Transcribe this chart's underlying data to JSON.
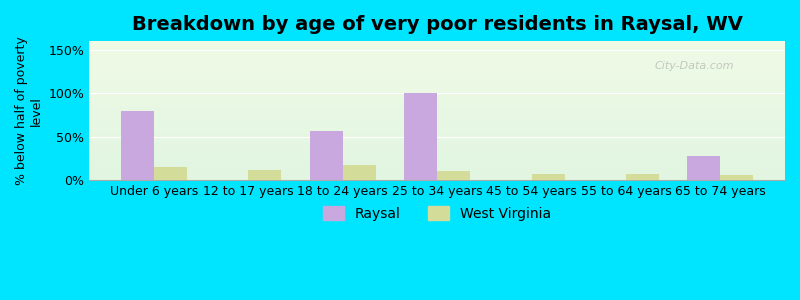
{
  "title": "Breakdown by age of very poor residents in Raysal, WV",
  "ylabel": "% below half of poverty\nlevel",
  "categories": [
    "Under 6 years",
    "12 to 17 years",
    "18 to 24 years",
    "25 to 34 years",
    "45 to 54 years",
    "55 to 64 years",
    "65 to 74 years"
  ],
  "raysal_values": [
    80,
    0,
    57,
    100,
    0,
    0,
    28
  ],
  "wv_values": [
    15,
    12,
    17,
    10,
    7,
    7,
    6
  ],
  "raysal_color": "#c9a8e0",
  "wv_color": "#d4dc9a",
  "bar_width": 0.35,
  "ylim": [
    0,
    160
  ],
  "yticks": [
    0,
    50,
    100,
    150
  ],
  "ytick_labels": [
    "0%",
    "50%",
    "100%",
    "150%"
  ],
  "background_top": "#e8f5e9",
  "background_bottom": "#f0f7e8",
  "outer_bg": "#00e5ff",
  "title_fontsize": 14,
  "axis_fontsize": 9,
  "legend_labels": [
    "Raysal",
    "West Virginia"
  ],
  "watermark": "City-Data.com"
}
